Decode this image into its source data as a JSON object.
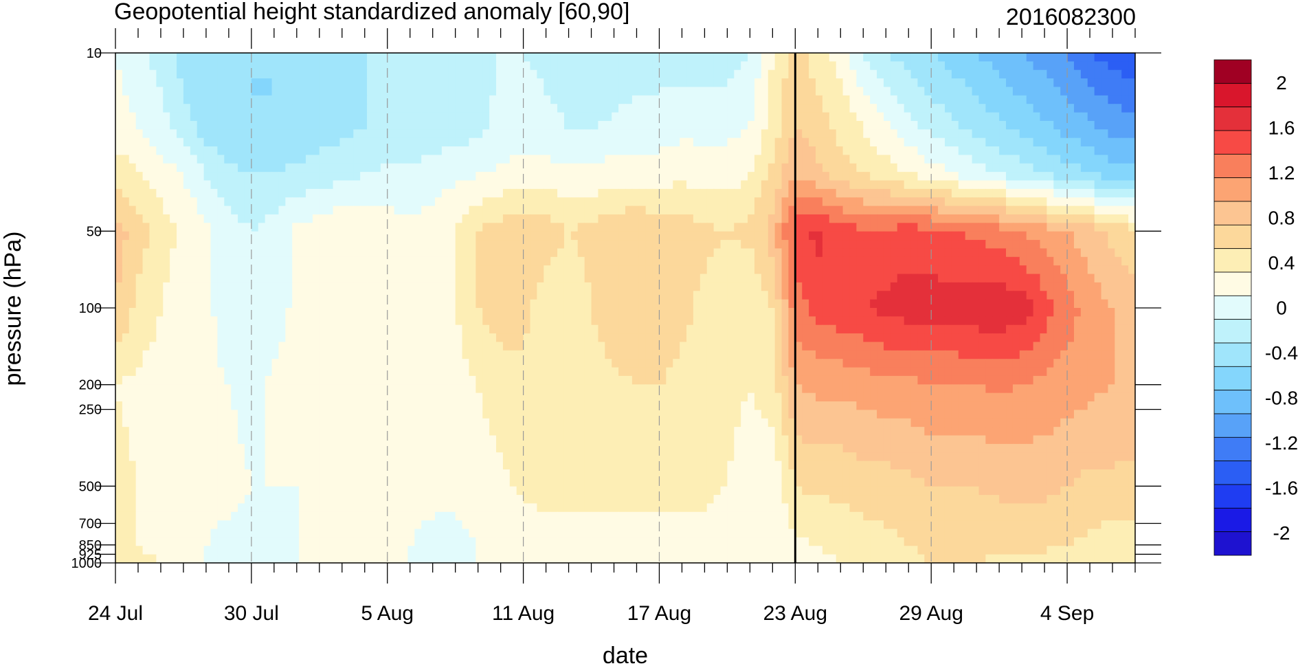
{
  "chart_data": {
    "type": "heatmap",
    "title": "Geopotential height standardized anomaly [60,90]",
    "date_label": "2016082300",
    "xlabel": "date",
    "ylabel": "pressure (hPa)",
    "x_ticks": [
      "24 Jul",
      "30 Jul",
      "5 Aug",
      "11 Aug",
      "17 Aug",
      "23 Aug",
      "29 Aug",
      "4 Sep"
    ],
    "x_tick_days": [
      0,
      6,
      12,
      18,
      24,
      30,
      36,
      42
    ],
    "x_range_days": [
      0,
      45
    ],
    "current_day": 30,
    "y_ticks": [
      "10",
      "50",
      "100",
      "200",
      "250",
      "500",
      "700",
      "850",
      "925",
      "1000"
    ],
    "y_tick_values": [
      10,
      50,
      100,
      200,
      250,
      500,
      700,
      850,
      925,
      1000
    ],
    "y_scale": "log",
    "y_reversed": true,
    "colorbar_levels": [
      -2.2,
      -2.0,
      -1.8,
      -1.6,
      -1.4,
      -1.2,
      -1.0,
      -0.8,
      -0.6,
      -0.4,
      -0.2,
      0,
      0.2,
      0.4,
      0.6,
      0.8,
      1.0,
      1.2,
      1.4,
      1.6,
      1.8,
      2.0,
      2.2
    ],
    "colorbar_colors": [
      "#1e12d0",
      "#1a1ae6",
      "#1f3df2",
      "#2b5ef4",
      "#3f7cf6",
      "#58a2f8",
      "#6ec0fb",
      "#84d6fc",
      "#a0e5fb",
      "#bff2fb",
      "#e2fbfc",
      "#fffbe4",
      "#fdeeb5",
      "#fcd89b",
      "#fcc592",
      "#fca473",
      "#f97f5c",
      "#f74a45",
      "#e4303a",
      "#d9162c",
      "#a00023"
    ],
    "colorbar_labels": [
      "2",
      "1.6",
      "1.2",
      "0.8",
      "0.4",
      "0",
      "-0.4",
      "-0.8",
      "-1.2",
      "-1.6",
      "-2"
    ],
    "colorbar_label_values": [
      2.0,
      1.6,
      1.2,
      0.8,
      0.4,
      0,
      -0.4,
      -0.8,
      -1.2,
      -1.6,
      -2.0
    ],
    "field_rows": [
      {
        "p": 10,
        "v": [
          0,
          -0.15,
          -0.3,
          -0.5,
          -0.6,
          -0.6,
          -0.6,
          -0.6,
          -0.5,
          -0.5,
          -0.4,
          -0.4,
          -0.3,
          -0.3,
          -0.3,
          -0.3,
          -0.25,
          -0.2,
          -0.2,
          -0.25,
          -0.3,
          -0.4,
          -0.4,
          -0.3,
          -0.3,
          -0.3,
          -0.3,
          -0.3,
          -0.2,
          0.2,
          0.5,
          0.3,
          0.1,
          -0.2,
          -0.4,
          -0.5,
          -0.6,
          -0.7,
          -0.8,
          -0.9,
          -1.0,
          -1.1,
          -1.2,
          -1.4,
          -1.5,
          -1.6
        ]
      },
      {
        "p": 20,
        "v": [
          0.1,
          0,
          -0.1,
          -0.3,
          -0.5,
          -0.55,
          -0.6,
          -0.6,
          -0.55,
          -0.5,
          -0.45,
          -0.4,
          -0.35,
          -0.35,
          -0.3,
          -0.3,
          -0.25,
          -0.15,
          -0.1,
          -0.15,
          -0.2,
          -0.2,
          -0.15,
          -0.1,
          -0.1,
          -0.05,
          -0.05,
          -0.05,
          0,
          0.3,
          0.6,
          0.5,
          0.35,
          0.2,
          0.05,
          -0.1,
          -0.25,
          -0.35,
          -0.45,
          -0.55,
          -0.65,
          -0.75,
          -0.85,
          -0.95,
          -1.05,
          -1.1
        ]
      },
      {
        "p": 30,
        "v": [
          0.35,
          0.2,
          0.1,
          0,
          -0.2,
          -0.35,
          -0.4,
          -0.4,
          -0.35,
          -0.3,
          -0.25,
          -0.2,
          -0.15,
          -0.15,
          -0.1,
          -0.05,
          0,
          0.05,
          0.1,
          0.1,
          0.05,
          0.05,
          0.1,
          0.1,
          0.1,
          0.15,
          0.1,
          0.1,
          0.2,
          0.45,
          0.8,
          0.65,
          0.5,
          0.4,
          0.3,
          0.2,
          0.1,
          0,
          -0.1,
          -0.2,
          -0.3,
          -0.4,
          -0.5,
          -0.6,
          -0.7,
          -0.75
        ]
      },
      {
        "p": 50,
        "v": [
          0.7,
          0.5,
          0.3,
          0.15,
          0.05,
          -0.1,
          -0.2,
          -0.1,
          0.05,
          0.1,
          0.2,
          0.15,
          0.1,
          0.05,
          0.1,
          0.2,
          0.4,
          0.5,
          0.55,
          0.5,
          0.4,
          0.45,
          0.55,
          0.6,
          0.55,
          0.5,
          0.45,
          0.4,
          0.45,
          0.7,
          1.3,
          1.45,
          1.3,
          1.25,
          1.25,
          1.3,
          1.25,
          1.2,
          1.15,
          1.1,
          1.0,
          0.9,
          0.8,
          0.7,
          0.55,
          0.45
        ]
      },
      {
        "p": 100,
        "v": [
          0.6,
          0.35,
          0.2,
          0.1,
          0.05,
          -0.1,
          -0.2,
          -0.1,
          0.05,
          0.1,
          0.2,
          0.15,
          0.1,
          0.05,
          0.1,
          0.2,
          0.4,
          0.5,
          0.45,
          0.3,
          0.25,
          0.4,
          0.55,
          0.6,
          0.55,
          0.45,
          0.35,
          0.3,
          0.2,
          0.4,
          1.1,
          1.3,
          1.35,
          1.4,
          1.45,
          1.5,
          1.5,
          1.5,
          1.55,
          1.55,
          1.5,
          1.3,
          1.1,
          0.9,
          0.8,
          0.7
        ]
      },
      {
        "p": 200,
        "v": [
          0.2,
          0.15,
          0.1,
          0.05,
          0.05,
          0,
          -0.05,
          0.05,
          0.05,
          0.1,
          0.1,
          0.1,
          0.05,
          0.05,
          0.05,
          0.1,
          0.2,
          0.3,
          0.35,
          0.35,
          0.3,
          0.3,
          0.35,
          0.4,
          0.4,
          0.35,
          0.3,
          0.25,
          0.2,
          0.3,
          0.8,
          0.85,
          0.85,
          0.9,
          0.95,
          0.95,
          1.0,
          1.0,
          1.0,
          1.05,
          1.0,
          0.95,
          0.9,
          0.85,
          0.8,
          0.75
        ]
      },
      {
        "p": 500,
        "v": [
          0.25,
          0.2,
          0.15,
          0.1,
          0.05,
          0.05,
          0,
          0,
          0,
          0.05,
          0.05,
          0.05,
          0.05,
          0.05,
          0.05,
          0.05,
          0.1,
          0.15,
          0.25,
          0.35,
          0.35,
          0.35,
          0.3,
          0.3,
          0.3,
          0.3,
          0.3,
          0.2,
          0.1,
          0.05,
          0.4,
          0.45,
          0.45,
          0.5,
          0.5,
          0.55,
          0.6,
          0.6,
          0.6,
          0.65,
          0.65,
          0.65,
          0.6,
          0.55,
          0.55,
          0.55
        ]
      },
      {
        "p": 850,
        "v": [
          0.25,
          0.2,
          0.15,
          0.05,
          0,
          -0.05,
          -0.05,
          -0.05,
          0,
          0.05,
          0.05,
          0.05,
          0,
          0,
          -0.05,
          -0.05,
          0,
          0.05,
          0.05,
          0,
          0,
          0.05,
          0.05,
          0.05,
          0.05,
          0.05,
          0.05,
          0,
          0,
          0.05,
          0.15,
          0.2,
          0.25,
          0.3,
          0.35,
          0.4,
          0.45,
          0.45,
          0.45,
          0.45,
          0.45,
          0.45,
          0.4,
          0.35,
          0.3,
          0.3
        ]
      },
      {
        "p": 1000,
        "v": [
          0.3,
          0.25,
          0.2,
          0.05,
          0,
          -0.05,
          -0.05,
          -0.05,
          0,
          0.05,
          0.05,
          0.05,
          0,
          0,
          -0.05,
          -0.05,
          0,
          0.05,
          0.05,
          0,
          0,
          0.05,
          0.05,
          0.05,
          0.05,
          0.05,
          0.05,
          0,
          0,
          0.05,
          0.1,
          0.15,
          0.2,
          0.25,
          0.3,
          0.35,
          0.4,
          0.4,
          0.4,
          0.35,
          0.35,
          0.3,
          0.3,
          0.25,
          0.2,
          0.2
        ]
      }
    ]
  }
}
